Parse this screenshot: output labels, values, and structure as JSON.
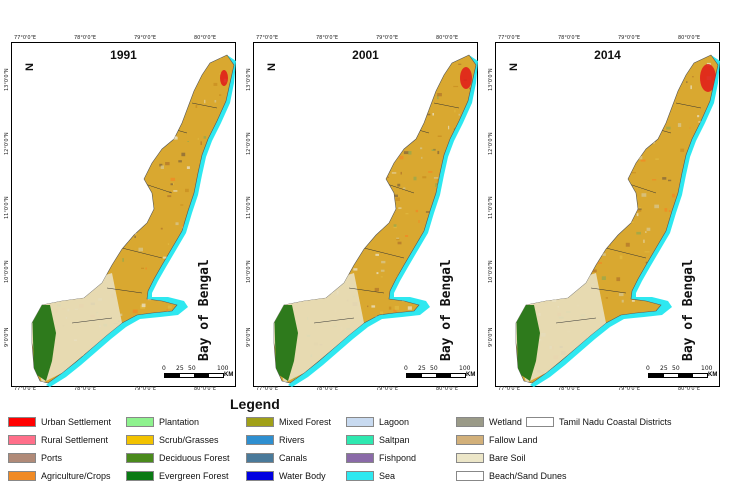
{
  "panels": [
    {
      "year": "1991"
    },
    {
      "year": "2001"
    },
    {
      "year": "2014"
    }
  ],
  "ticks": {
    "top": [
      "77°0'0\"E",
      "78°0'0\"E",
      "79°0'0\"E",
      "80°0'0\"E"
    ],
    "bottom": [
      "77°0'0\"E",
      "78°0'0\"E",
      "79°0'0\"E",
      "80°0'0\"E"
    ],
    "lat": [
      "13°0'0\"N",
      "12°0'0\"N",
      "11°0'0\"N",
      "10°0'0\"N",
      "9°0'0\"N"
    ]
  },
  "bay_label": "Bay of Bengal",
  "north_label": "N",
  "scale": {
    "labels": [
      "0",
      "25",
      "50",
      "100"
    ],
    "unit": "KM"
  },
  "legend": {
    "title": "Legend",
    "items": [
      {
        "label": "Urban Settlement",
        "color": "#ff0000"
      },
      {
        "label": "Rural Settlement",
        "color": "#ff6f8a"
      },
      {
        "label": "Ports",
        "color": "#b08a78"
      },
      {
        "label": "Agriculture/Crops",
        "color": "#f08a24"
      },
      {
        "label": "Plantation",
        "color": "#8ef28e"
      },
      {
        "label": "Scrub/Grasses",
        "color": "#f2c200"
      },
      {
        "label": "Deciduous Forest",
        "color": "#4a8a1c"
      },
      {
        "label": "Evergreen Forest",
        "color": "#0a7a14"
      },
      {
        "label": "Mixed Forest",
        "color": "#a0a018"
      },
      {
        "label": "Rivers",
        "color": "#2e8fd0"
      },
      {
        "label": "Canals",
        "color": "#4a7a9a"
      },
      {
        "label": "Water Body",
        "color": "#0000e0"
      },
      {
        "label": "Lagoon",
        "color": "#c8daf0"
      },
      {
        "label": "Saltpan",
        "color": "#2ee8b0"
      },
      {
        "label": "Fishpond",
        "color": "#8a6aa8"
      },
      {
        "label": "Sea",
        "color": "#2ee8f0"
      },
      {
        "label": "Wetland",
        "color": "#9a9a88"
      },
      {
        "label": "Fallow Land",
        "color": "#d2b07a"
      },
      {
        "label": "Bare Soil",
        "color": "#ece6c8"
      },
      {
        "label": "Beach/Sand Dunes",
        "color": "#ffffff"
      },
      {
        "label": "Tamil Nadu Coastal Districts",
        "color": "#ffffff"
      }
    ]
  },
  "colors": {
    "land": "#d9a830",
    "sea": "#2ee8f0",
    "urban": "#e01818",
    "evergreen": "#2e7a1c",
    "bare": "#e8dfc0",
    "water": "#0a0ad0"
  }
}
